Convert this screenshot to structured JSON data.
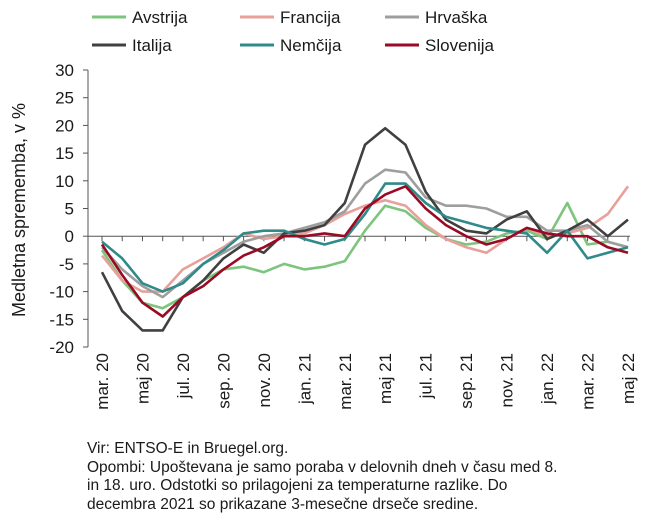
{
  "chart_data": {
    "type": "line",
    "ylabel": "Medletna sprememba, v %",
    "ylim": [
      -20,
      30
    ],
    "yticks": [
      -20,
      -15,
      -10,
      -5,
      0,
      5,
      10,
      15,
      20,
      25,
      30
    ],
    "grid": false,
    "legend_position": "top",
    "x": [
      "2020-03",
      "2020-04",
      "2020-05",
      "2020-06",
      "2020-07",
      "2020-08",
      "2020-09",
      "2020-10",
      "2020-11",
      "2020-12",
      "2021-01",
      "2021-02",
      "2021-03",
      "2021-04",
      "2021-05",
      "2021-06",
      "2021-07",
      "2021-08",
      "2021-09",
      "2021-10",
      "2021-11",
      "2021-12",
      "2022-01",
      "2022-02",
      "2022-03",
      "2022-04",
      "2022-05"
    ],
    "x_tick_labels": [
      "mar. 20",
      "maj 20",
      "jul. 20",
      "sep. 20",
      "nov. 20",
      "jan. 21",
      "mar. 21",
      "maj 21",
      "jul. 21",
      "sep. 21",
      "nov. 21",
      "jan. 22",
      "mar. 22",
      "maj 22"
    ],
    "series": [
      {
        "name": "Avstrija",
        "color": "#7dc47d",
        "values": [
          -2.5,
          -8,
          -12,
          -13,
          -11,
          -8,
          -6,
          -5.5,
          -6.5,
          -5,
          -6,
          -5.5,
          -4.5,
          1,
          5.5,
          4.5,
          1.5,
          -0.5,
          -1.5,
          -1,
          0.5,
          1,
          -0.5,
          6,
          -1.5,
          -1,
          -2
        ]
      },
      {
        "name": "Francija",
        "color": "#e8a09a",
        "values": [
          -3.5,
          -8,
          -10,
          -10,
          -6,
          -4,
          -2,
          0.5,
          -0.5,
          0,
          0.5,
          2,
          4,
          5.5,
          6.5,
          5.5,
          2,
          -0.5,
          -2,
          -3,
          -0.5,
          1.5,
          0,
          0.5,
          1.5,
          4,
          9
        ]
      },
      {
        "name": "Hrvaška",
        "color": "#9e9e9e",
        "values": [
          -2,
          -6,
          -9,
          -11,
          -8,
          -5,
          -3,
          -1,
          0,
          0.5,
          1.5,
          2.5,
          4.5,
          9.5,
          12,
          11.5,
          7,
          5.5,
          5.5,
          5,
          3.5,
          3.5,
          1,
          1,
          2,
          -1,
          -2
        ]
      },
      {
        "name": "Italija",
        "color": "#404040",
        "values": [
          -6.5,
          -13.5,
          -17,
          -17,
          -11,
          -8,
          -4,
          -1.5,
          -3,
          0.5,
          1,
          2,
          6,
          16.5,
          19.5,
          16.5,
          8,
          3,
          1,
          0.5,
          3,
          4.5,
          -0.5,
          1,
          3,
          0,
          3
        ]
      },
      {
        "name": "Nemčija",
        "color": "#2f8a8a",
        "values": [
          -1,
          -4,
          -8.5,
          -10,
          -8.5,
          -5,
          -2.5,
          0.5,
          1,
          1,
          -0.5,
          -1.5,
          -0.5,
          4,
          9.5,
          9.5,
          6,
          3.5,
          2.5,
          1.5,
          1,
          0.5,
          -3,
          1,
          -4,
          -3,
          -2
        ]
      },
      {
        "name": "Slovenija",
        "color": "#9b0a24",
        "values": [
          -1.5,
          -7,
          -12,
          -14.5,
          -11,
          -9,
          -6,
          -3.5,
          -2,
          0,
          0,
          0.5,
          0,
          5,
          7.5,
          9,
          5,
          2,
          0,
          -1.5,
          -0.5,
          1.5,
          0.5,
          0,
          0,
          -2,
          -3
        ]
      }
    ]
  },
  "notes": {
    "source": "Vir: ENTSO-E in Bruegel.org.",
    "remarks_line1": "Opombi: Upoštevana je samo poraba v delovnih dneh v času med 8.",
    "remarks_line2": "in 18. uro. Odstotki so prilagojeni za temperaturne razlike. Do",
    "remarks_line3": "decembra 2021 so prikazane 3-mesečne drseče sredine."
  }
}
